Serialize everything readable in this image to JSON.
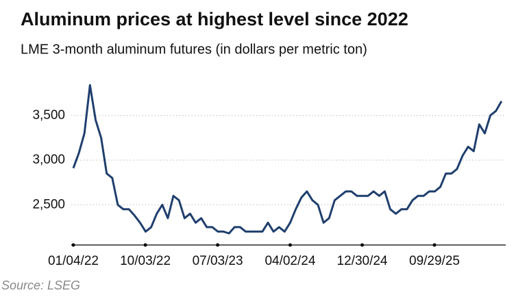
{
  "chart_data": {
    "type": "line",
    "title": "Aluminum prices at highest level since 2022",
    "subtitle": "LME 3-month aluminum futures (in dollars per metric ton)",
    "source": "Source: LSEG",
    "x": [
      "01/04/22",
      "01/25/22",
      "02/15/22",
      "03/08/22",
      "03/29/22",
      "04/19/22",
      "05/10/22",
      "05/31/22",
      "06/21/22",
      "07/12/22",
      "08/02/22",
      "08/23/22",
      "09/13/22",
      "10/04/22",
      "10/25/22",
      "11/15/22",
      "12/06/22",
      "12/27/22",
      "01/17/23",
      "02/07/23",
      "02/28/23",
      "03/21/23",
      "04/11/23",
      "05/02/23",
      "05/23/23",
      "06/13/23",
      "07/04/23",
      "07/25/23",
      "08/15/23",
      "09/05/23",
      "09/26/23",
      "10/17/23",
      "11/07/23",
      "11/28/23",
      "12/19/23",
      "01/09/24",
      "01/30/24",
      "02/20/24",
      "03/12/24",
      "04/02/24",
      "04/23/24",
      "05/14/24",
      "06/04/24",
      "06/25/24",
      "07/16/24",
      "08/06/24",
      "08/27/24",
      "09/17/24",
      "10/08/24",
      "10/29/24",
      "11/19/24",
      "12/10/24",
      "12/31/24",
      "01/21/25",
      "02/11/25",
      "03/04/25",
      "03/25/25",
      "04/15/25",
      "05/06/25",
      "05/27/25",
      "06/17/25",
      "07/08/25",
      "07/29/25",
      "08/19/25",
      "09/09/25",
      "09/30/25",
      "10/21/25",
      "11/11/25",
      "12/02/25",
      "12/23/25",
      "01/13/26",
      "02/03/26",
      "02/24/26",
      "03/17/26",
      "04/07/26",
      "04/28/26",
      "05/19/26",
      "06/09/26"
    ],
    "series": [
      {
        "color": "#1f3f6e",
        "values": [
          2910,
          3080,
          3300,
          3840,
          3450,
          3250,
          2850,
          2800,
          2500,
          2450,
          2450,
          2380,
          2300,
          2200,
          2250,
          2400,
          2500,
          2350,
          2600,
          2550,
          2350,
          2400,
          2300,
          2350,
          2250,
          2250,
          2200,
          2200,
          2180,
          2250,
          2250,
          2200,
          2200,
          2200,
          2200,
          2300,
          2200,
          2250,
          2200,
          2300,
          2450,
          2580,
          2650,
          2550,
          2500,
          2300,
          2350,
          2550,
          2600,
          2650,
          2650,
          2600,
          2600,
          2600,
          2650,
          2600,
          2650,
          2450,
          2400,
          2450,
          2450,
          2550,
          2600,
          2600,
          2650,
          2650,
          2700,
          2850,
          2850,
          2900,
          3050,
          3150,
          3100,
          3400,
          3300,
          3500,
          3550,
          3660
        ]
      }
    ],
    "xticks": [
      "01/04/22",
      "10/03/22",
      "07/03/23",
      "04/02/24",
      "12/30/24",
      "09/29/25"
    ],
    "ylim": [
      2050,
      3950
    ],
    "yticks": [
      {
        "value": 2500,
        "label": "2,500"
      },
      {
        "value": 3000,
        "label": "3,000"
      },
      {
        "value": 3500,
        "label": "3,500"
      }
    ],
    "grid": true
  }
}
